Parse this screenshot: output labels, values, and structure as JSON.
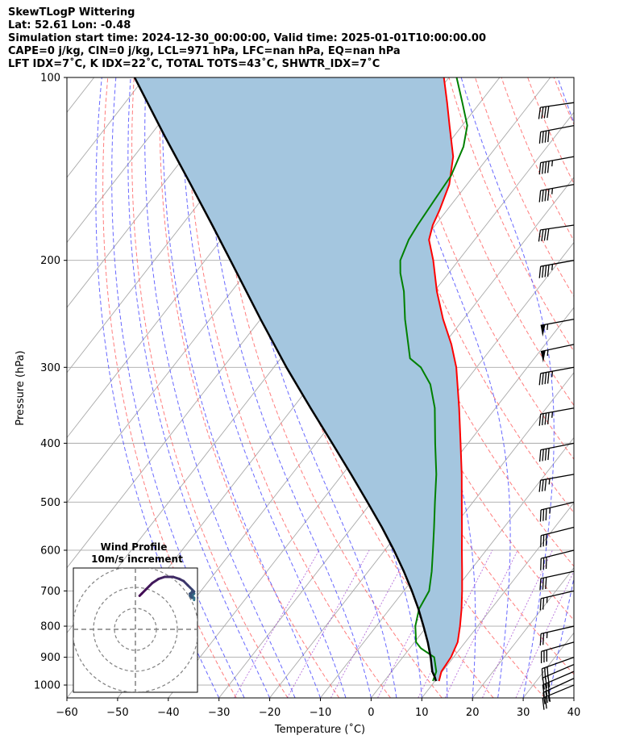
{
  "header": {
    "lines": [
      "SkewTLogP Wittering",
      "Lat: 52.61   Lon: -0.48",
      "Simulation start time: 2024-12-30_00:00:00, Valid time: 2025-01-01T10:00:00.00",
      "CAPE=0 j/kg, CIN=0 j/kg, LCL=971 hPa, LFC=nan hPa, EQ=nan hPa",
      "LFT IDX=7˚C, K IDX=22˚C, TOTAL TOTS=43˚C, SHWTR_IDX=7˚C"
    ]
  },
  "chart_data": {
    "type": "skew-t log-p",
    "xlabel": "Temperature (˚C)",
    "ylabel": "Pressure (hPa)",
    "xlim": [
      -60,
      40
    ],
    "ylim": [
      1050,
      100
    ],
    "x_ticks": [
      -60,
      -50,
      -40,
      -30,
      -20,
      -10,
      0,
      10,
      20,
      30,
      40
    ],
    "y_ticks": [
      100,
      200,
      300,
      400,
      500,
      600,
      700,
      800,
      900,
      1000
    ],
    "y_scale": "log",
    "grid": true,
    "series": [
      {
        "key": "temperature",
        "color": "#ff0000",
        "points": [
          {
            "p": 985,
            "t": 10.8
          },
          {
            "p": 950,
            "t": 9.8
          },
          {
            "p": 900,
            "t": 9.5
          },
          {
            "p": 850,
            "t": 8.5
          },
          {
            "p": 800,
            "t": 6.5
          },
          {
            "p": 750,
            "t": 4.2
          },
          {
            "p": 700,
            "t": 1.5
          },
          {
            "p": 650,
            "t": -1.5
          },
          {
            "p": 600,
            "t": -4.8
          },
          {
            "p": 550,
            "t": -8.3
          },
          {
            "p": 500,
            "t": -12.2
          },
          {
            "p": 450,
            "t": -16.5
          },
          {
            "p": 400,
            "t": -21.5
          },
          {
            "p": 350,
            "t": -27.2
          },
          {
            "p": 300,
            "t": -34.0
          },
          {
            "p": 275,
            "t": -38.5
          },
          {
            "p": 250,
            "t": -44.0
          },
          {
            "p": 225,
            "t": -49.5
          },
          {
            "p": 200,
            "t": -55.0
          },
          {
            "p": 185,
            "t": -59.0
          },
          {
            "p": 175,
            "t": -60.5
          },
          {
            "p": 165,
            "t": -61.5
          },
          {
            "p": 150,
            "t": -63.5
          },
          {
            "p": 135,
            "t": -67.0
          },
          {
            "p": 120,
            "t": -72.5
          },
          {
            "p": 110,
            "t": -76.5
          },
          {
            "p": 100,
            "t": -81.0
          }
        ]
      },
      {
        "key": "dewpoint",
        "color": "#008000",
        "points": [
          {
            "p": 985,
            "t": 9.6
          },
          {
            "p": 950,
            "t": 8.8
          },
          {
            "p": 900,
            "t": 6.2
          },
          {
            "p": 870,
            "t": 2.2
          },
          {
            "p": 850,
            "t": 0.3
          },
          {
            "p": 800,
            "t": -2.3
          },
          {
            "p": 750,
            "t": -4.2
          },
          {
            "p": 700,
            "t": -5.0
          },
          {
            "p": 650,
            "t": -7.5
          },
          {
            "p": 600,
            "t": -10.5
          },
          {
            "p": 550,
            "t": -13.8
          },
          {
            "p": 500,
            "t": -17.5
          },
          {
            "p": 450,
            "t": -21.5
          },
          {
            "p": 400,
            "t": -26.5
          },
          {
            "p": 350,
            "t": -32.0
          },
          {
            "p": 320,
            "t": -36.5
          },
          {
            "p": 300,
            "t": -41.0
          },
          {
            "p": 290,
            "t": -44.5
          },
          {
            "p": 275,
            "t": -47.0
          },
          {
            "p": 250,
            "t": -51.5
          },
          {
            "p": 225,
            "t": -56.0
          },
          {
            "p": 210,
            "t": -59.5
          },
          {
            "p": 200,
            "t": -61.5
          },
          {
            "p": 185,
            "t": -63.0
          },
          {
            "p": 175,
            "t": -63.5
          },
          {
            "p": 160,
            "t": -64.0
          },
          {
            "p": 145,
            "t": -64.5
          },
          {
            "p": 130,
            "t": -66.5
          },
          {
            "p": 120,
            "t": -69.0
          },
          {
            "p": 110,
            "t": -73.5
          },
          {
            "p": 100,
            "t": -78.5
          }
        ]
      },
      {
        "key": "parcel",
        "color": "#000000",
        "points": [
          {
            "p": 985,
            "t": 10.2
          },
          {
            "p": 971,
            "t": 9.4
          },
          {
            "p": 950,
            "t": 8.0
          },
          {
            "p": 900,
            "t": 5.5
          },
          {
            "p": 850,
            "t": 2.6
          },
          {
            "p": 800,
            "t": -0.7
          },
          {
            "p": 750,
            "t": -4.3
          },
          {
            "p": 700,
            "t": -8.4
          },
          {
            "p": 650,
            "t": -13.0
          },
          {
            "p": 600,
            "t": -18.2
          },
          {
            "p": 550,
            "t": -24.1
          },
          {
            "p": 500,
            "t": -30.8
          },
          {
            "p": 450,
            "t": -38.3
          },
          {
            "p": 400,
            "t": -46.8
          },
          {
            "p": 350,
            "t": -56.5
          },
          {
            "p": 300,
            "t": -67.5
          },
          {
            "p": 250,
            "t": -80.0
          },
          {
            "p": 200,
            "t": -95.0
          },
          {
            "p": 175,
            "t": -104.0
          },
          {
            "p": 150,
            "t": -114.5
          },
          {
            "p": 125,
            "t": -127.0
          },
          {
            "p": 100,
            "t": -142.0
          }
        ]
      }
    ],
    "wind_barbs": [
      {
        "p": 1000,
        "u": -12,
        "v": -5
      },
      {
        "p": 975,
        "u": -13,
        "v": -6
      },
      {
        "p": 950,
        "u": -14,
        "v": -6
      },
      {
        "p": 925,
        "u": -14,
        "v": -6
      },
      {
        "p": 900,
        "u": -14,
        "v": -5
      },
      {
        "p": 850,
        "u": -14,
        "v": -4
      },
      {
        "p": 800,
        "u": -13,
        "v": -3
      },
      {
        "p": 700,
        "u": -13,
        "v": -3
      },
      {
        "p": 650,
        "u": -14,
        "v": -3
      },
      {
        "p": 600,
        "u": -16,
        "v": -4
      },
      {
        "p": 550,
        "u": -16,
        "v": -4
      },
      {
        "p": 500,
        "u": -17,
        "v": -4
      },
      {
        "p": 450,
        "u": -17,
        "v": -3
      },
      {
        "p": 400,
        "u": -20,
        "v": -4
      },
      {
        "p": 350,
        "u": -22,
        "v": -4
      },
      {
        "p": 300,
        "u": -22,
        "v": -4
      },
      {
        "p": 275,
        "u": -28,
        "v": -6
      },
      {
        "p": 250,
        "u": -27,
        "v": -5
      },
      {
        "p": 200,
        "u": -22,
        "v": -4
      },
      {
        "p": 175,
        "u": -21,
        "v": -3
      },
      {
        "p": 150,
        "u": -22,
        "v": -4
      },
      {
        "p": 135,
        "u": -22,
        "v": -4
      },
      {
        "p": 120,
        "u": -21,
        "v": -4
      },
      {
        "p": 110,
        "u": -21,
        "v": -3
      }
    ],
    "hodograph": {
      "title": "Wind Profile",
      "subtitle": "10m/s increment",
      "ring_step": 10,
      "rings": 3,
      "points": [
        {
          "u": 28,
          "v": 14
        },
        {
          "u": 28,
          "v": 15
        },
        {
          "u": 27,
          "v": 16
        },
        {
          "u": 28,
          "v": 17
        },
        {
          "u": 27,
          "v": 18
        },
        {
          "u": 26,
          "v": 16
        },
        {
          "u": 27,
          "v": 15
        },
        {
          "u": 26,
          "v": 17
        },
        {
          "u": 28,
          "v": 18
        },
        {
          "u": 27,
          "v": 19
        },
        {
          "u": 26,
          "v": 20
        },
        {
          "u": 25,
          "v": 21
        },
        {
          "u": 23,
          "v": 23
        },
        {
          "u": 21,
          "v": 24
        },
        {
          "u": 18,
          "v": 25
        },
        {
          "u": 14,
          "v": 25
        },
        {
          "u": 11,
          "v": 24
        },
        {
          "u": 8,
          "v": 22
        },
        {
          "u": 5,
          "v": 19
        },
        {
          "u": 3,
          "v": 17
        },
        {
          "u": 2,
          "v": 16
        }
      ]
    },
    "colors": {
      "isotherm": "#a9a9a9",
      "dry_adiabat": "#ff6666",
      "moist_adiabat": "#4d4dff",
      "mixing_ratio": "#9933cc",
      "cape_fill": "#a4c6df"
    }
  }
}
